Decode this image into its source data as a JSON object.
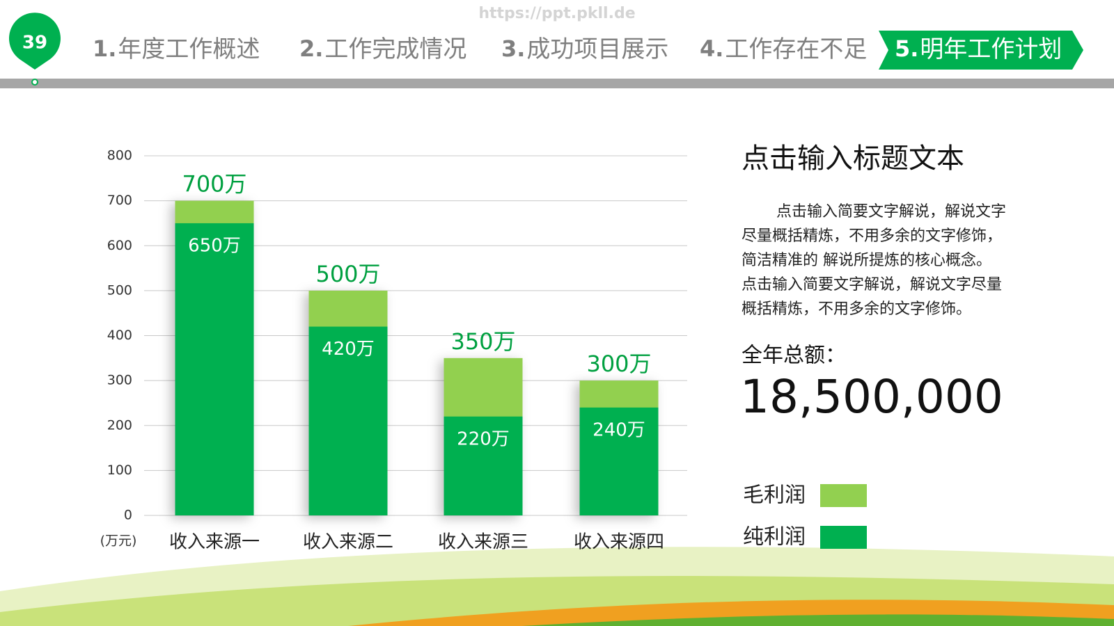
{
  "header": {
    "watermark": "https://ppt.pkll.de",
    "page_number": "39",
    "nav": [
      {
        "number": "1.",
        "text": "年度工作概述"
      },
      {
        "number": "2.",
        "text": "工作完成情况"
      },
      {
        "number": "3.",
        "text": "成功项目展示"
      },
      {
        "number": "4.",
        "text": "工作存在不足"
      },
      {
        "number": "5.",
        "text": "明年工作计划"
      }
    ]
  },
  "chart_data": {
    "type": "bar",
    "mode": "overlap",
    "unit_label": "(万元)",
    "categories": [
      "收入来源一",
      "收入来源二",
      "收入来源三",
      "收入来源四"
    ],
    "series": [
      {
        "name": "毛利润",
        "color": "#92d050",
        "values": [
          700,
          500,
          350,
          300
        ],
        "value_labels": [
          "700万",
          "500万",
          "350万",
          "300万"
        ]
      },
      {
        "name": "纯利润",
        "color": "#00b050",
        "values": [
          650,
          420,
          220,
          240
        ],
        "value_labels": [
          "650万",
          "420万",
          "220万",
          "240万"
        ]
      }
    ],
    "ylim": [
      0,
      800
    ],
    "yticks": [
      0,
      100,
      200,
      300,
      400,
      500,
      600,
      700,
      800
    ],
    "grid": true
  },
  "side": {
    "title": "点击输入标题文本",
    "paragraph": [
      "点击输入简要文字解说，解说文字",
      "尽量概括精炼，不用多余的文字修饰，",
      "简洁精准的  解说所提炼的核心概念。",
      "点击输入简要文字解说，解说文字尽量",
      "概括精炼，不用多余的文字修饰。"
    ],
    "total_label": "全年总额：",
    "total_value": "18,500,000"
  }
}
